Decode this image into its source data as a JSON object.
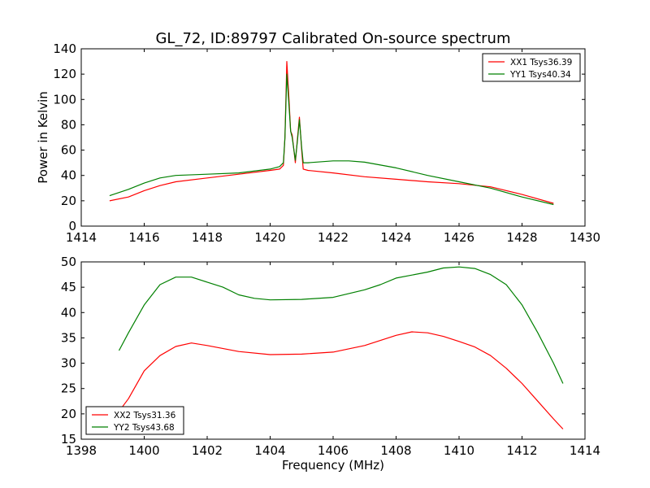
{
  "chart_data": [
    {
      "type": "line",
      "title": "GL_72, ID:89797 Calibrated On-source spectrum",
      "xlabel": "",
      "ylabel": "Power in Kelvin",
      "xlim": [
        1414,
        1430
      ],
      "ylim": [
        0,
        140
      ],
      "xticks": [
        1414,
        1416,
        1418,
        1420,
        1422,
        1424,
        1426,
        1428,
        1430
      ],
      "yticks": [
        0,
        20,
        40,
        60,
        80,
        100,
        120,
        140
      ],
      "legend_position": "top-right",
      "series": [
        {
          "name": "XX1 Tsys36.39",
          "color": "#ff0000",
          "x": [
            1414.9,
            1415.5,
            1416,
            1416.5,
            1417,
            1418,
            1419,
            1420,
            1420.3,
            1420.42,
            1420.47,
            1420.53,
            1420.6,
            1420.65,
            1420.7,
            1420.8,
            1420.87,
            1420.93,
            1421.0,
            1421.05,
            1421.2,
            1422,
            1423,
            1424,
            1425,
            1426,
            1427,
            1428,
            1429
          ],
          "y": [
            20,
            23,
            28,
            32,
            35,
            38,
            41,
            44,
            45,
            48,
            70,
            130,
            100,
            75,
            72,
            50,
            70,
            86,
            60,
            45,
            44,
            42,
            39,
            37,
            35,
            33.5,
            31,
            25,
            18
          ]
        },
        {
          "name": "YY1 Tsys40.34",
          "color": "#008000",
          "x": [
            1414.9,
            1415.5,
            1416,
            1416.5,
            1417,
            1418,
            1419,
            1420,
            1420.3,
            1420.42,
            1420.47,
            1420.53,
            1420.6,
            1420.65,
            1420.7,
            1420.8,
            1420.87,
            1420.93,
            1421.0,
            1421.05,
            1421.2,
            1422,
            1422.5,
            1423,
            1424,
            1425,
            1426,
            1427,
            1428,
            1429
          ],
          "y": [
            24,
            29,
            34,
            38,
            40,
            41,
            42,
            45,
            47,
            50,
            70,
            120,
            95,
            75,
            70,
            52,
            68,
            84,
            62,
            50,
            50,
            51.5,
            51.5,
            50.5,
            46,
            40,
            35,
            30,
            23,
            17
          ]
        }
      ]
    },
    {
      "type": "line",
      "title": "",
      "xlabel": "Frequency (MHz)",
      "ylabel": "",
      "xlim": [
        1398,
        1414
      ],
      "ylim": [
        15,
        50
      ],
      "xticks": [
        1398,
        1400,
        1402,
        1404,
        1406,
        1408,
        1410,
        1412,
        1414
      ],
      "yticks": [
        15,
        20,
        25,
        30,
        35,
        40,
        45,
        50
      ],
      "legend_position": "bottom-left",
      "series": [
        {
          "name": "XX2 Tsys31.36",
          "color": "#ff0000",
          "x": [
            1399.2,
            1399.5,
            1400,
            1400.5,
            1401,
            1401.5,
            1402,
            1403,
            1404,
            1405,
            1406,
            1407,
            1408,
            1408.5,
            1409,
            1409.5,
            1410,
            1410.5,
            1411,
            1411.5,
            1412,
            1412.5,
            1413,
            1413.3
          ],
          "y": [
            20.5,
            23,
            28.5,
            31.5,
            33.3,
            34,
            33.5,
            32.3,
            31.7,
            31.8,
            32.2,
            33.5,
            35.5,
            36.2,
            36,
            35.3,
            34.3,
            33.2,
            31.5,
            29,
            26,
            22.5,
            19,
            17
          ]
        },
        {
          "name": "YY2 Tsys43.68",
          "color": "#008000",
          "x": [
            1399.2,
            1399.5,
            1400,
            1400.5,
            1401,
            1401.5,
            1402,
            1402.5,
            1403,
            1403.5,
            1404,
            1405,
            1406,
            1407,
            1407.5,
            1408,
            1409,
            1409.5,
            1410,
            1410.5,
            1411,
            1411.5,
            1412,
            1412.5,
            1413,
            1413.3
          ],
          "y": [
            32.5,
            36,
            41.5,
            45.5,
            47,
            47,
            46,
            45,
            43.5,
            42.8,
            42.5,
            42.6,
            43,
            44.5,
            45.5,
            46.8,
            48,
            48.8,
            49,
            48.7,
            47.5,
            45.5,
            41.5,
            36,
            30,
            26
          ]
        }
      ]
    }
  ]
}
